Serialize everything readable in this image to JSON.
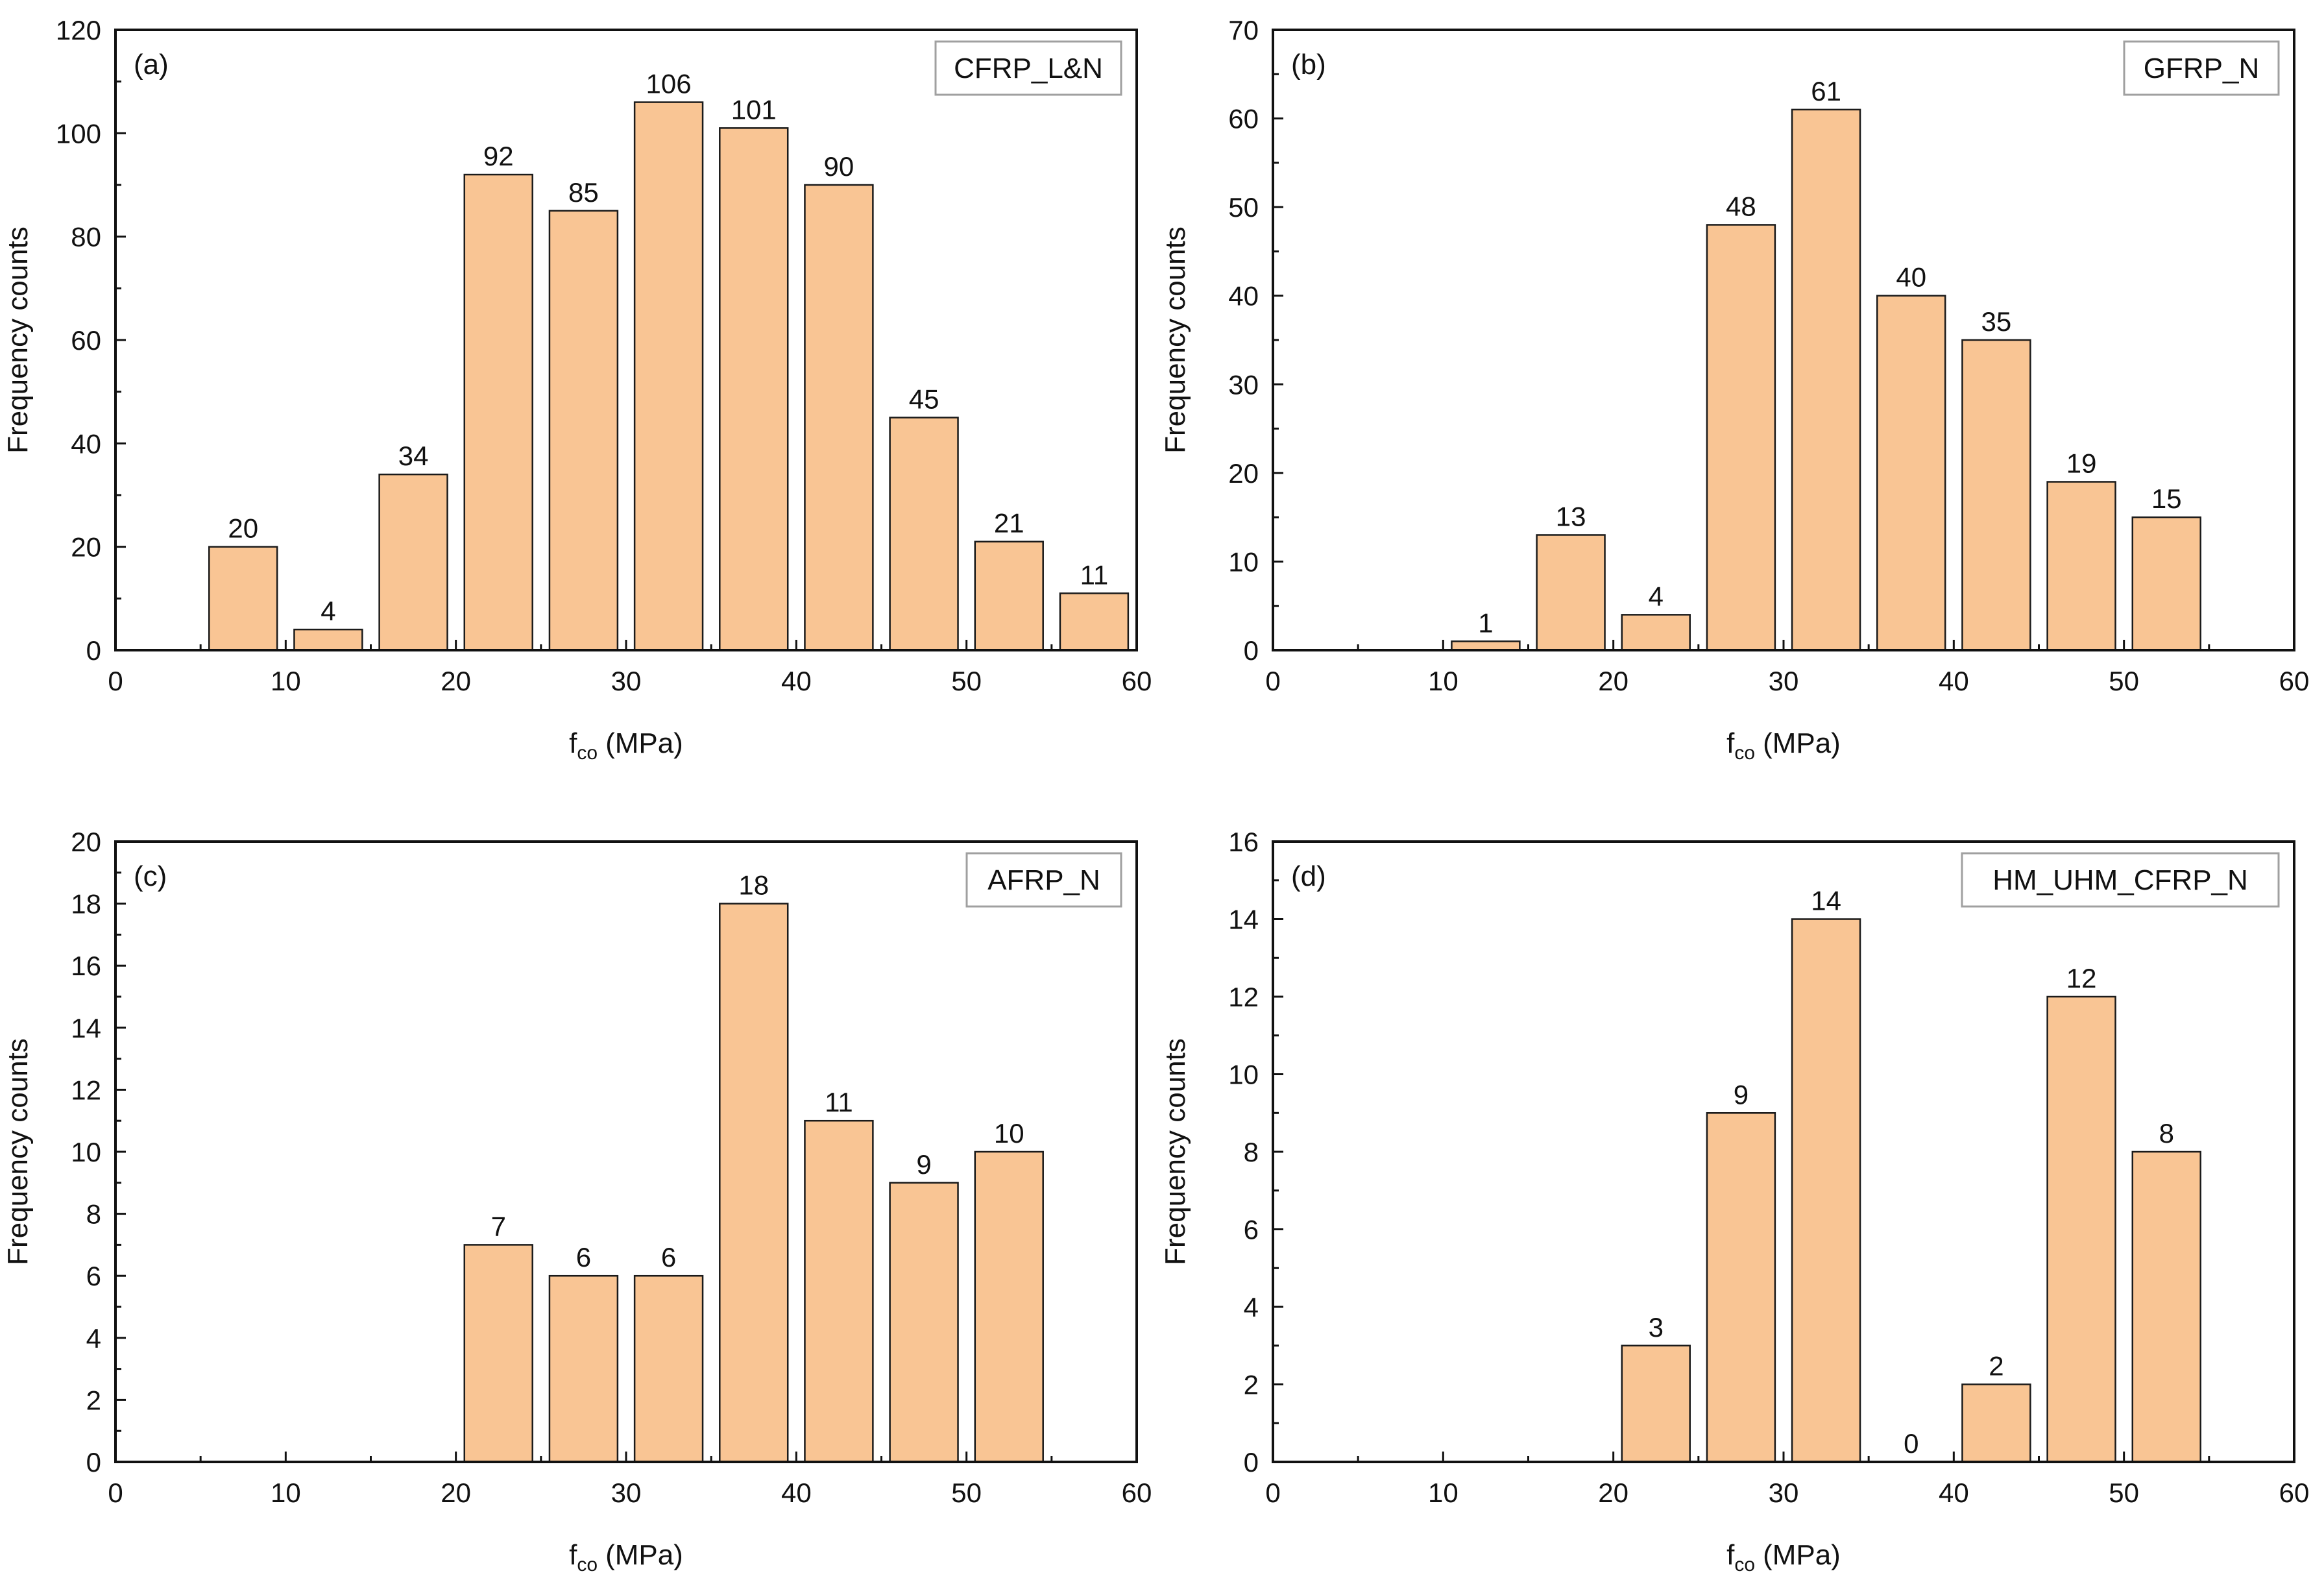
{
  "figure": {
    "bar_fill": "#F9C594",
    "bar_stroke": "#1a1a1a",
    "axis_color": "#111111",
    "badge_border": "#a0a0a0"
  },
  "chart_data": [
    {
      "type": "bar",
      "panel_label": "(a)",
      "title": "CFRP_L&N",
      "xlabel": "f",
      "xlabel_sub": "co",
      "xlabel_unit": "(MPa)",
      "ylabel": "Frequency counts",
      "xlim": [
        0,
        60
      ],
      "ylim": [
        0,
        120
      ],
      "xticks": [
        0,
        10,
        20,
        30,
        40,
        50,
        60
      ],
      "yticks": [
        0,
        20,
        40,
        60,
        80,
        100,
        120
      ],
      "bin_width": 5,
      "bin_starts": [
        5,
        10,
        15,
        20,
        25,
        30,
        35,
        40,
        45,
        50,
        55
      ],
      "values": [
        20,
        4,
        34,
        92,
        85,
        106,
        101,
        90,
        45,
        21,
        11
      ],
      "value_labels": [
        "20",
        "4",
        "34",
        "92",
        "85",
        "106",
        "101",
        "90",
        "45",
        "21",
        "11"
      ]
    },
    {
      "type": "bar",
      "panel_label": "(b)",
      "title": "GFRP_N",
      "xlabel": "f",
      "xlabel_sub": "co",
      "xlabel_unit": "(MPa)",
      "ylabel": "Frequency counts",
      "xlim": [
        0,
        60
      ],
      "ylim": [
        0,
        70
      ],
      "xticks": [
        0,
        10,
        20,
        30,
        40,
        50,
        60
      ],
      "yticks": [
        0,
        10,
        20,
        30,
        40,
        50,
        60,
        70
      ],
      "bin_width": 5,
      "bin_starts": [
        10,
        15,
        20,
        25,
        30,
        35,
        40,
        45,
        50
      ],
      "values": [
        1,
        13,
        4,
        48,
        61,
        40,
        35,
        19,
        15
      ],
      "value_labels": [
        "1",
        "13",
        "4",
        "48",
        "61",
        "40",
        "35",
        "19",
        "15"
      ]
    },
    {
      "type": "bar",
      "panel_label": "(c)",
      "title": "AFRP_N",
      "xlabel": "f",
      "xlabel_sub": "co",
      "xlabel_unit": "(MPa)",
      "ylabel": "Frequency counts",
      "xlim": [
        0,
        60
      ],
      "ylim": [
        0,
        20
      ],
      "xticks": [
        0,
        10,
        20,
        30,
        40,
        50,
        60
      ],
      "yticks": [
        0,
        2,
        4,
        6,
        8,
        10,
        12,
        14,
        16,
        18,
        20
      ],
      "bin_width": 5,
      "bin_starts": [
        20,
        25,
        30,
        35,
        40,
        45,
        50
      ],
      "values": [
        7,
        6,
        6,
        18,
        11,
        9,
        10
      ],
      "value_labels": [
        "7",
        "6",
        "6",
        "18",
        "11",
        "9",
        "10"
      ]
    },
    {
      "type": "bar",
      "panel_label": "(d)",
      "title": "HM_UHM_CFRP_N",
      "xlabel": "f",
      "xlabel_sub": "co",
      "xlabel_unit": "(MPa)",
      "ylabel": "Frequency counts",
      "xlim": [
        0,
        60
      ],
      "ylim": [
        0,
        16
      ],
      "xticks": [
        0,
        10,
        20,
        30,
        40,
        50,
        60
      ],
      "yticks": [
        0,
        2,
        4,
        6,
        8,
        10,
        12,
        14,
        16
      ],
      "bin_width": 5,
      "bin_starts": [
        20,
        25,
        30,
        35,
        40,
        45,
        50
      ],
      "values": [
        3,
        9,
        14,
        0,
        2,
        12,
        8
      ],
      "value_labels": [
        "3",
        "9",
        "14",
        "0",
        "2",
        "12",
        "8"
      ]
    }
  ]
}
